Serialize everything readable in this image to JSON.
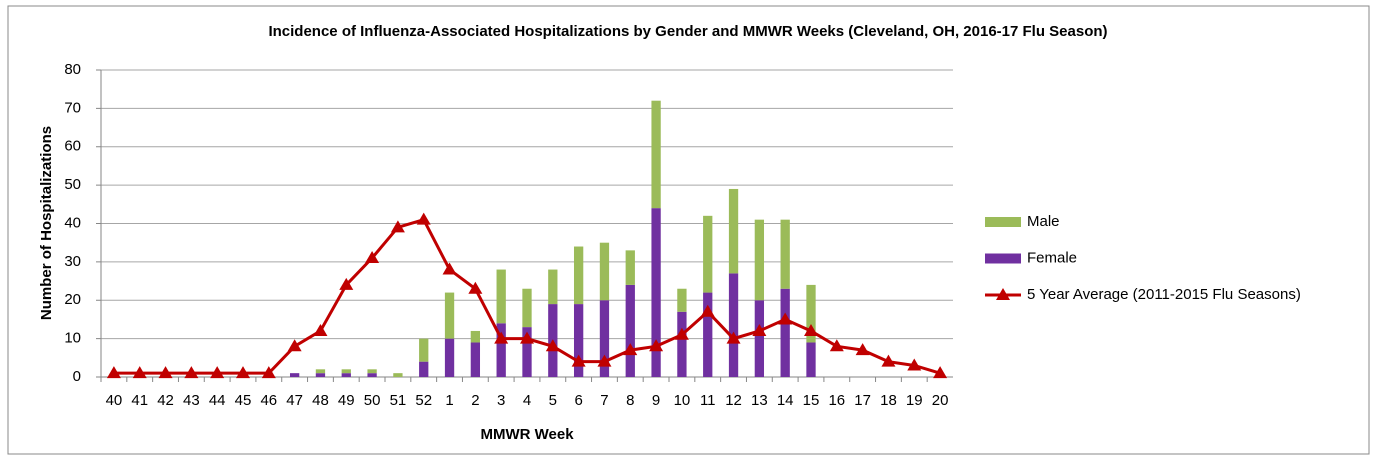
{
  "chart_data": {
    "type": "bar",
    "title": "Incidence of Influenza-Associated Hospitalizations by Gender and MMWR Weeks (Cleveland, OH, 2016-17 Flu Season)",
    "x_label": "MMWR Week",
    "y_label": "Number of Hospitalizations",
    "categories": [
      "40",
      "41",
      "42",
      "43",
      "44",
      "45",
      "46",
      "47",
      "48",
      "49",
      "50",
      "51",
      "52",
      "1",
      "2",
      "3",
      "4",
      "5",
      "6",
      "7",
      "8",
      "9",
      "10",
      "11",
      "12",
      "13",
      "14",
      "15",
      "16",
      "17",
      "18",
      "19",
      "20"
    ],
    "series": [
      {
        "name": "Male",
        "type": "bar",
        "color": "#9bbb59",
        "values": [
          0,
          0,
          0,
          0,
          0,
          0,
          0,
          0,
          1,
          1,
          1,
          1,
          6,
          12,
          3,
          14,
          10,
          9,
          15,
          15,
          9,
          28,
          6,
          20,
          22,
          21,
          18,
          15,
          0,
          0,
          0,
          0,
          0
        ]
      },
      {
        "name": "Female",
        "type": "bar",
        "color": "#7030a0",
        "values": [
          0,
          0,
          0,
          0,
          0,
          0,
          0,
          1,
          1,
          1,
          1,
          0,
          4,
          10,
          9,
          14,
          13,
          19,
          19,
          20,
          24,
          44,
          17,
          22,
          27,
          20,
          23,
          9,
          0,
          0,
          0,
          0,
          0
        ]
      },
      {
        "name": "5 Year Average (2011-2015 Flu Seasons)",
        "type": "line",
        "color": "#c00000",
        "values": [
          1,
          1,
          1,
          1,
          1,
          1,
          1,
          8,
          12,
          24,
          31,
          39,
          41,
          28,
          23,
          10,
          10,
          8,
          4,
          4,
          7,
          8,
          11,
          17,
          10,
          12,
          15,
          12,
          8,
          7,
          4,
          3,
          1
        ]
      }
    ],
    "ylim": [
      0,
      80
    ],
    "yticks": [
      0,
      10,
      20,
      30,
      40,
      50,
      60,
      70,
      80
    ],
    "grid": true,
    "legend": "right"
  }
}
